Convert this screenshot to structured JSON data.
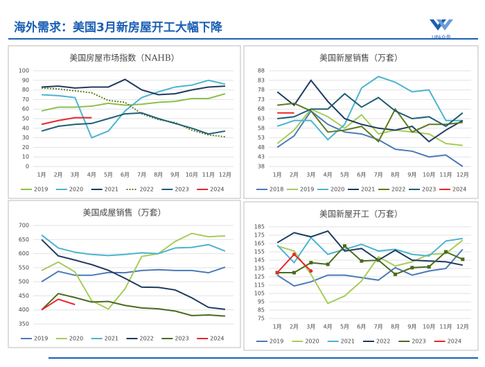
{
  "slide": {
    "title": "海外需求：美国3月新房屋开工大幅下降",
    "logo": "UPA众盈"
  },
  "chart_data": [
    {
      "type": "line",
      "title": "美国房屋市场指数（NAHB）",
      "categories": [
        "1月",
        "2月",
        "3月",
        "4月",
        "5月",
        "6月",
        "7月",
        "8月",
        "9月",
        "10月",
        "11月",
        "12月"
      ],
      "ylim": [
        0,
        100
      ],
      "yticks": [
        0,
        10,
        20,
        30,
        40,
        50,
        60,
        70,
        80,
        90,
        100
      ],
      "grid": true,
      "series": [
        {
          "name": "2019",
          "color": "#8cbf4c",
          "values": [
            58,
            62,
            62,
            63,
            66,
            64,
            65,
            67,
            68,
            71,
            71,
            76
          ]
        },
        {
          "name": "2020",
          "color": "#4bb4d0",
          "values": [
            75,
            74,
            72,
            30,
            37,
            58,
            72,
            78,
            83,
            85,
            90,
            86
          ]
        },
        {
          "name": "2021",
          "color": "#1f3a5f",
          "values": [
            83,
            84,
            82,
            83,
            83,
            91,
            80,
            75,
            76,
            80,
            83,
            84
          ]
        },
        {
          "name": "2022",
          "color": "#5e7a1e",
          "dash": "dotted",
          "values": [
            82,
            81,
            79,
            77,
            69,
            67,
            55,
            49,
            46,
            38,
            33,
            31
          ]
        },
        {
          "name": "2023",
          "color": "#1e5f73",
          "values": [
            37,
            42,
            44,
            45,
            50,
            55,
            56,
            50,
            45,
            40,
            34,
            37
          ]
        },
        {
          "name": "2024",
          "color": "#e8262a",
          "values": [
            44,
            48,
            51,
            51,
            null,
            null,
            null,
            null,
            null,
            null,
            null,
            null
          ]
        }
      ]
    },
    {
      "type": "line",
      "title": "美国新屋销售（万套）",
      "categories": [
        "1月",
        "2月",
        "3月",
        "4月",
        "5月",
        "6月",
        "7月",
        "8月",
        "9月",
        "10月",
        "11月",
        "12月"
      ],
      "ylim": [
        38,
        88
      ],
      "yticks": [
        38,
        43,
        48,
        53,
        58,
        63,
        68,
        73,
        78,
        83,
        88
      ],
      "grid": true,
      "series": [
        {
          "name": "2018",
          "color": "#4a7ab8",
          "values": [
            48,
            54,
            67,
            60,
            56,
            55,
            52,
            47,
            46,
            43,
            44,
            38
          ]
        },
        {
          "name": "2019",
          "color": "#a6cc5a",
          "values": [
            50,
            57,
            68,
            64,
            58,
            65,
            55,
            57,
            56,
            55,
            50,
            49
          ]
        },
        {
          "name": "2020",
          "color": "#4bb4d0",
          "values": [
            59,
            62,
            62,
            52,
            60,
            79,
            85,
            82,
            77,
            78,
            62,
            62
          ]
        },
        {
          "name": "2021",
          "color": "#1f3a5f",
          "values": [
            77,
            70,
            83,
            72,
            63,
            60,
            58,
            57,
            59,
            51,
            57,
            62
          ]
        },
        {
          "name": "2022",
          "color": "#5e7a1e",
          "values": [
            70,
            71,
            67,
            56,
            57,
            59,
            51,
            68,
            56,
            60,
            60,
            61
          ]
        },
        {
          "name": "2023",
          "color": "#1e5f73",
          "values": [
            63,
            64,
            68,
            68,
            76,
            69,
            74,
            67,
            63,
            64,
            59,
            66
          ]
        },
        {
          "name": "2024",
          "color": "#e8262a",
          "values": [
            66,
            66,
            null,
            null,
            null,
            null,
            null,
            null,
            null,
            null,
            null,
            null
          ]
        }
      ]
    },
    {
      "type": "line",
      "title": "美国成屋销售（万套）",
      "categories": [
        null,
        null,
        null,
        null,
        null,
        null,
        null,
        null,
        null,
        null,
        null,
        null
      ],
      "ylim": [
        350,
        700
      ],
      "yticks": [
        350,
        400,
        450,
        500,
        550,
        600,
        650,
        700
      ],
      "grid": true,
      "series": [
        {
          "name": "2019",
          "color": "#4a7ab8",
          "values": [
            500,
            537,
            523,
            523,
            533,
            532,
            540,
            543,
            540,
            540,
            532,
            552
          ]
        },
        {
          "name": "2020",
          "color": "#a6cc5a",
          "values": [
            540,
            570,
            535,
            433,
            403,
            475,
            590,
            600,
            643,
            672,
            660,
            663
          ]
        },
        {
          "name": "2021",
          "color": "#4bb4d0",
          "values": [
            666,
            620,
            605,
            597,
            593,
            597,
            603,
            600,
            620,
            622,
            632,
            609
          ]
        },
        {
          "name": "2022",
          "color": "#1f3a5f",
          "values": [
            650,
            592,
            577,
            561,
            541,
            512,
            481,
            480,
            471,
            443,
            409,
            402
          ]
        },
        {
          "name": "2023",
          "color": "#4a6b1e",
          "values": [
            400,
            458,
            444,
            428,
            430,
            416,
            407,
            404,
            396,
            380,
            382,
            378
          ]
        },
        {
          "name": "2024",
          "color": "#e8262a",
          "values": [
            400,
            438,
            419,
            null,
            null,
            null,
            null,
            null,
            null,
            null,
            null,
            null
          ]
        }
      ]
    },
    {
      "type": "line",
      "title": "美国新屋开工（万套）",
      "categories": [
        "1月",
        "2月",
        "3月",
        "4月",
        "5月",
        "6月",
        "7月",
        "8月",
        "9月",
        "10月",
        "11月",
        "12月"
      ],
      "ylim": [
        75,
        185
      ],
      "yticks": [
        75,
        85,
        95,
        105,
        115,
        125,
        135,
        145,
        155,
        165,
        175,
        185
      ],
      "grid": true,
      "series": [
        {
          "name": "2019",
          "color": "#4a7ab8",
          "values": [
            127,
            114,
            119,
            127,
            127,
            124,
            121,
            136,
            127,
            132,
            135,
            158
          ]
        },
        {
          "name": "2020",
          "color": "#a6cc5a",
          "values": [
            162,
            156,
            128,
            93,
            102,
            120,
            149,
            138,
            143,
            152,
            153,
            169
          ]
        },
        {
          "name": "2021",
          "color": "#4bb4d0",
          "values": [
            163,
            142,
            172,
            152,
            158,
            164,
            156,
            158,
            152,
            150,
            168,
            171
          ]
        },
        {
          "name": "2022",
          "color": "#1f3a5f",
          "values": [
            166,
            178,
            173,
            180,
            156,
            159,
            145,
            157,
            145,
            144,
            143,
            139
          ]
        },
        {
          "name": "2023",
          "color": "#4a6b1e",
          "marker": "square",
          "values": [
            130,
            130,
            142,
            140,
            162,
            144,
            145,
            128,
            136,
            137,
            155,
            146
          ]
        },
        {
          "name": "2024",
          "color": "#e8262a",
          "marker": "circle",
          "values": [
            130,
            152,
            132,
            null,
            null,
            null,
            null,
            null,
            null,
            null,
            null,
            null
          ]
        }
      ]
    }
  ]
}
